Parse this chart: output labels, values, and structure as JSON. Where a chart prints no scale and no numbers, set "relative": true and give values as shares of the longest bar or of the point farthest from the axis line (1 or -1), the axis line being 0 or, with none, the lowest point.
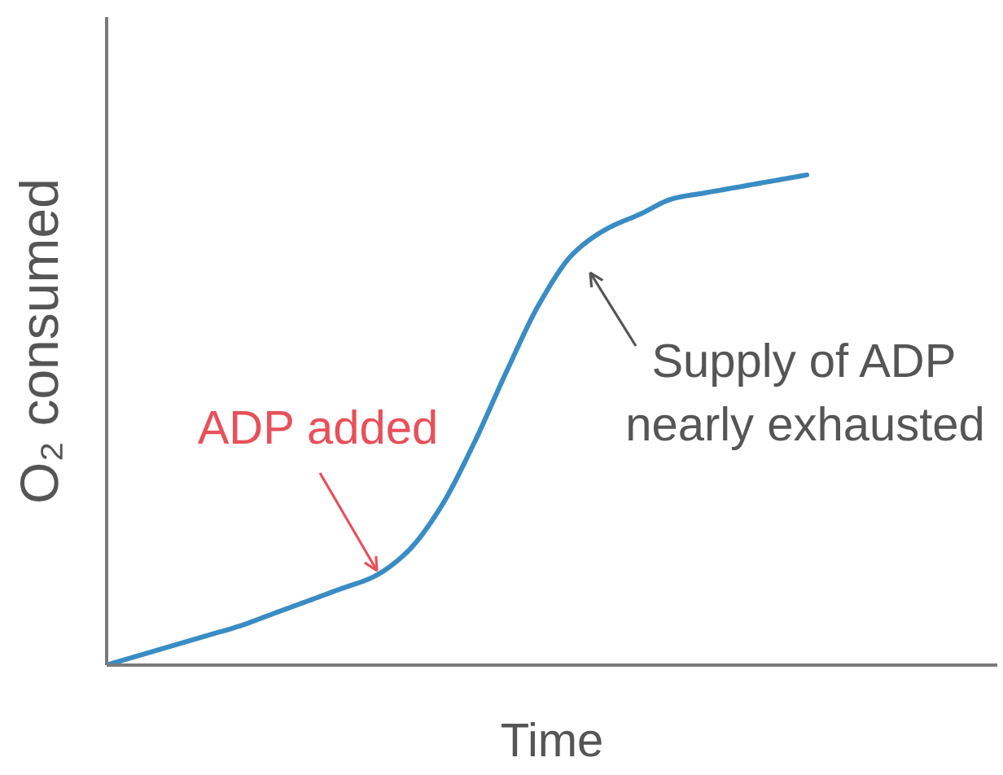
{
  "chart_data": {
    "type": "line",
    "xlabel": "Time",
    "ylabel": "O₂ consumed",
    "relative": true,
    "categories": [
      null,
      null,
      null,
      null,
      null,
      null,
      null,
      null,
      null,
      null,
      null,
      null,
      null,
      null,
      null,
      null,
      null,
      null,
      null,
      null,
      null,
      null
    ],
    "series": [
      {
        "color": "#3a8cc4",
        "values": [
          0.0,
          0.02,
          0.04,
          0.06,
          0.08,
          0.105,
          0.13,
          0.155,
          0.18,
          0.23,
          0.32,
          0.45,
          0.6,
          0.74,
          0.84,
          0.89,
          0.92,
          0.952,
          0.964,
          0.976,
          0.988,
          1.0
        ]
      }
    ],
    "annotations": [
      "ADP added",
      "Supply of ADP\nnearly exhausted"
    ]
  }
}
